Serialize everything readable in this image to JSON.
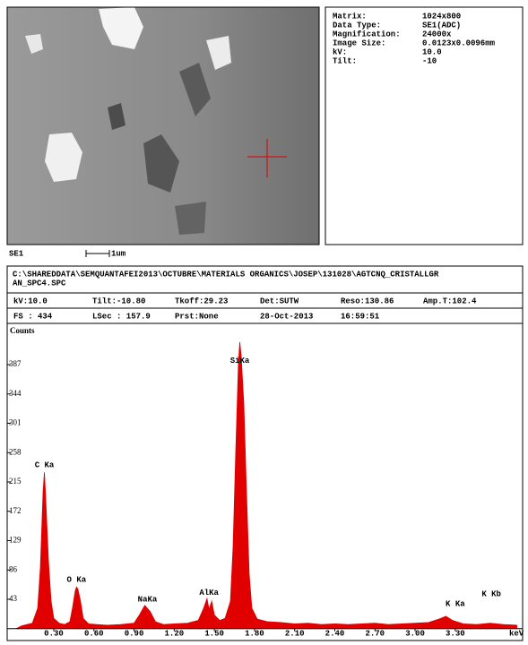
{
  "image": {
    "label": "SE1",
    "scale": "1um"
  },
  "info": {
    "rows": [
      [
        "Matrix:",
        "1024x800"
      ],
      [
        "Data Type:",
        "SE1(ADC)"
      ],
      [
        "Magnification:",
        "24000x"
      ],
      [
        "Image Size:",
        "0.0123x0.0096mm"
      ],
      [
        "kV:",
        "10.0"
      ],
      [
        "Tilt:",
        "-10"
      ]
    ]
  },
  "report": {
    "path": [
      "C:\\SHAREDDATA\\SEMQUANTAFEI2013\\OCTUBRE\\MATERIALS ORGANICS\\JOSEP\\131028\\AGTCNQ_CRISTALLGR",
      "AN_SPC4.SPC"
    ],
    "rows": [
      [
        "kV:10.0",
        "Tilt:-10.80",
        "Tkoff:29.23",
        "Det:SUTW",
        "Reso:130.86",
        "Amp.T:102.4"
      ],
      [
        "FS : 434",
        "LSec : 157.9",
        "Prst:None",
        "28-Oct-2013",
        "16:59:51"
      ]
    ]
  },
  "chart_data": {
    "type": "area",
    "color": "#e00000",
    "ylabel": "Counts",
    "xlabel": "keV",
    "xlim": [
      0,
      3.79
    ],
    "ylim": [
      0,
      442
    ],
    "xticks": [
      {
        "value": 0.3,
        "label": "0.30"
      },
      {
        "value": 0.6,
        "label": "0.60"
      },
      {
        "value": 0.9,
        "label": "0.90"
      },
      {
        "value": 1.2,
        "label": "1.20"
      },
      {
        "value": 1.5,
        "label": "1.50"
      },
      {
        "value": 1.8,
        "label": "1.80"
      },
      {
        "value": 2.1,
        "label": "2.10"
      },
      {
        "value": 2.4,
        "label": "2.40"
      },
      {
        "value": 2.7,
        "label": "2.70"
      },
      {
        "value": 3.0,
        "label": "3.00"
      },
      {
        "value": 3.3,
        "label": "3.30"
      }
    ],
    "yticks": [
      43,
      86,
      129,
      172,
      215,
      258,
      301,
      344,
      387
    ],
    "x": [
      0.02,
      0.06,
      0.1,
      0.14,
      0.18,
      0.2,
      0.22,
      0.23,
      0.24,
      0.26,
      0.28,
      0.3,
      0.34,
      0.38,
      0.42,
      0.44,
      0.46,
      0.47,
      0.48,
      0.5,
      0.52,
      0.56,
      0.62,
      0.7,
      0.8,
      0.9,
      0.94,
      0.98,
      1.02,
      1.06,
      1.12,
      1.2,
      1.3,
      1.38,
      1.42,
      1.445,
      1.46,
      1.48,
      1.5,
      1.54,
      1.58,
      1.62,
      1.64,
      1.66,
      1.68,
      1.69,
      1.7,
      1.72,
      1.74,
      1.76,
      1.78,
      1.82,
      1.9,
      2.0,
      2.1,
      2.2,
      2.3,
      2.4,
      2.5,
      2.6,
      2.7,
      2.8,
      2.9,
      3.0,
      3.1,
      3.18,
      3.23,
      3.28,
      3.36,
      3.46,
      3.56,
      3.66,
      3.76
    ],
    "values": [
      0,
      4,
      6,
      8,
      30,
      90,
      200,
      229,
      190,
      100,
      40,
      15,
      8,
      6,
      10,
      30,
      55,
      61,
      58,
      40,
      15,
      7,
      6,
      5,
      6,
      8,
      20,
      34,
      25,
      10,
      6,
      7,
      8,
      12,
      30,
      44,
      28,
      40,
      20,
      12,
      15,
      40,
      120,
      260,
      390,
      420,
      400,
      330,
      200,
      80,
      30,
      14,
      10,
      9,
      7,
      8,
      6,
      7,
      6,
      7,
      8,
      6,
      7,
      8,
      9,
      14,
      18,
      12,
      7,
      6,
      8,
      6,
      5
    ],
    "annotations": [
      {
        "text": "C Ka",
        "x": 0.23,
        "y": 229
      },
      {
        "text": "O Ka",
        "x": 0.47,
        "y": 61
      },
      {
        "text": "NaKa",
        "x": 1.0,
        "y": 32
      },
      {
        "text": "AlKa",
        "x": 1.46,
        "y": 42
      },
      {
        "text": "SiKa",
        "x": 1.69,
        "y": 382
      },
      {
        "text": "K Ka",
        "x": 3.3,
        "y": 26
      },
      {
        "text": "K Kb",
        "x": 3.57,
        "y": 40
      }
    ]
  }
}
